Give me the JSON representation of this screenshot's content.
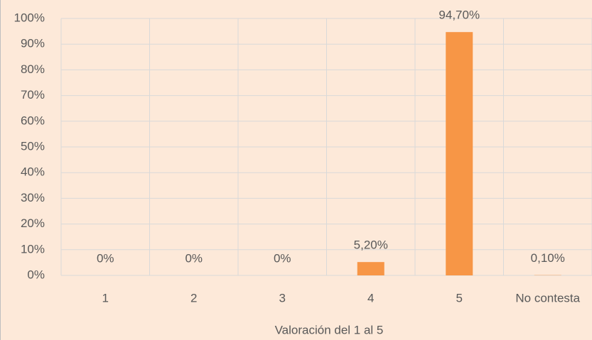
{
  "chart_data": {
    "type": "bar",
    "x_label": "Valoración del 1 al 5",
    "categories": [
      "1",
      "2",
      "3",
      "4",
      "5",
      "No contesta"
    ],
    "values": [
      0,
      0,
      0,
      5.2,
      94.7,
      0.1
    ],
    "value_labels": [
      "0%",
      "0%",
      "0%",
      "5,20%",
      "94,70%",
      "0,10%"
    ],
    "color": "#f79646",
    "ylim": [
      0,
      100
    ],
    "yticks": [
      {
        "value": 0,
        "label": "0%"
      },
      {
        "value": 10,
        "label": "10%"
      },
      {
        "value": 20,
        "label": "20%"
      },
      {
        "value": 30,
        "label": "30%"
      },
      {
        "value": 40,
        "label": "40%"
      },
      {
        "value": 50,
        "label": "50%"
      },
      {
        "value": 60,
        "label": "60%"
      },
      {
        "value": 70,
        "label": "70%"
      },
      {
        "value": 80,
        "label": "80%"
      },
      {
        "value": 90,
        "label": "90%"
      },
      {
        "value": 100,
        "label": "100%"
      }
    ],
    "grid": true
  }
}
